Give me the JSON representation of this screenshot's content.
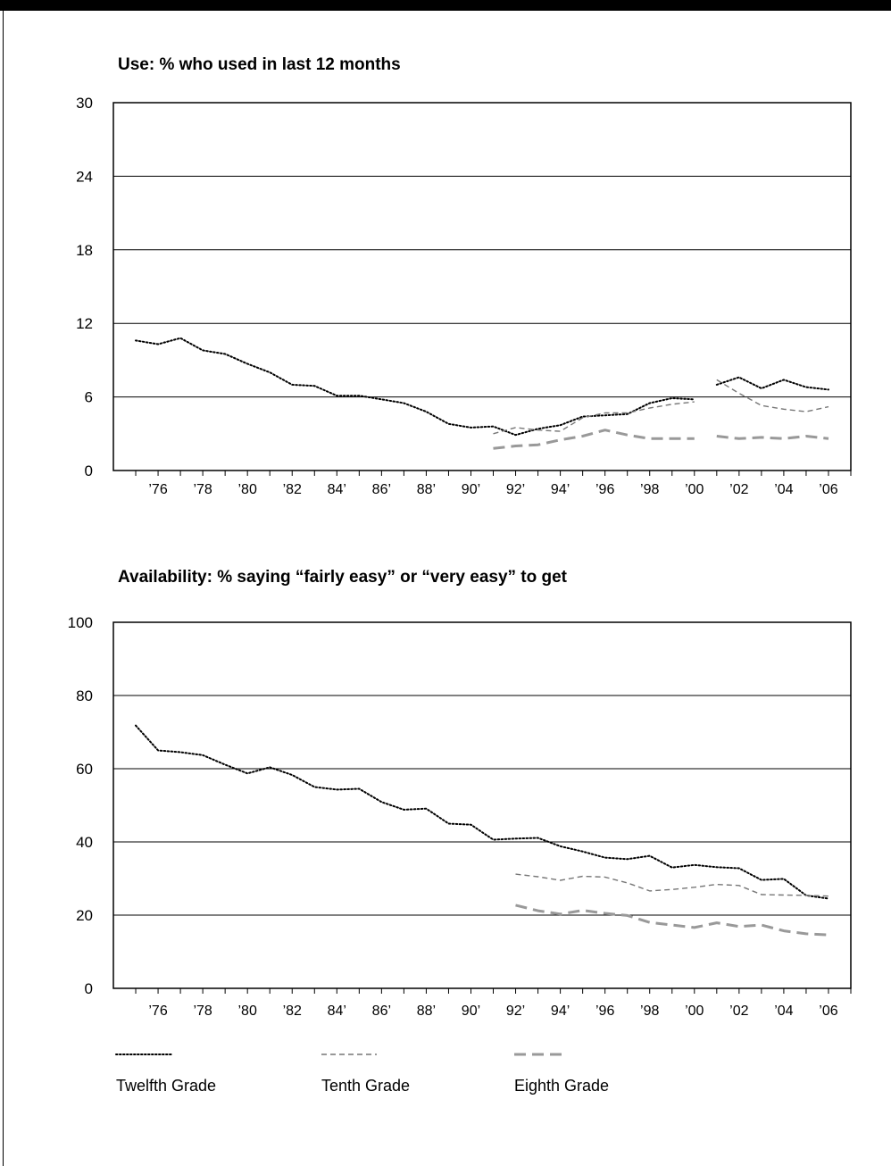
{
  "legend": [
    {
      "label": "Twelfth Grade",
      "color": "#000000",
      "style": "dotted"
    },
    {
      "label": "Tenth Grade",
      "color": "#777777",
      "style": "short-dash"
    },
    {
      "label": "Eighth Grade",
      "color": "#999999",
      "style": "long-dash"
    }
  ],
  "x_tick_labels": [
    "’76",
    "’78",
    "’80",
    "’82",
    "84’",
    "86’",
    "88’",
    "90’",
    "92’",
    "94’",
    "’96",
    "’98",
    "’00",
    "’02",
    "’04",
    "’06"
  ],
  "x_tick_years": [
    1976,
    1978,
    1980,
    1982,
    1984,
    1986,
    1988,
    1990,
    1992,
    1994,
    1996,
    1998,
    2000,
    2002,
    2004,
    2006
  ],
  "chart_data": [
    {
      "type": "line",
      "title": "Use: % who used in last 12 months",
      "xlabel": "",
      "ylabel": "",
      "xlim": [
        1974,
        2007
      ],
      "ylim": [
        0,
        30
      ],
      "yticks": [
        0,
        6,
        12,
        18,
        24,
        30
      ],
      "grid": true,
      "series": [
        {
          "name": "Twelfth Grade",
          "x": [
            1975,
            1976,
            1977,
            1978,
            1979,
            1980,
            1981,
            1982,
            1983,
            1984,
            1985,
            1986,
            1987,
            1988,
            1989,
            1990,
            1991,
            1992,
            1993,
            1994,
            1995,
            1996,
            1997,
            1998,
            1999,
            2000
          ],
          "y": [
            10.6,
            10.3,
            10.8,
            9.8,
            9.5,
            8.7,
            8.0,
            7.0,
            6.9,
            6.1,
            6.1,
            5.8,
            5.5,
            4.8,
            3.8,
            3.5,
            3.6,
            2.9,
            3.4,
            3.7,
            4.4,
            4.5,
            4.6,
            5.5,
            5.9,
            5.8
          ]
        },
        {
          "name": "Twelfth Grade",
          "x": [
            2001,
            2002,
            2003,
            2004,
            2005,
            2006
          ],
          "y": [
            7.0,
            7.6,
            6.7,
            7.4,
            6.8,
            6.6
          ]
        },
        {
          "name": "Tenth Grade",
          "x": [
            1991,
            1992,
            1993,
            1994,
            1995,
            1996,
            1997,
            1998,
            1999,
            2000
          ],
          "y": [
            3.0,
            3.5,
            3.3,
            3.2,
            4.3,
            4.7,
            4.7,
            5.1,
            5.4,
            5.6
          ]
        },
        {
          "name": "Tenth Grade",
          "x": [
            2001,
            2002,
            2003,
            2004,
            2005,
            2006
          ],
          "y": [
            7.4,
            6.3,
            5.3,
            5.0,
            4.8,
            5.2
          ]
        },
        {
          "name": "Eighth Grade",
          "x": [
            1991,
            1992,
            1993,
            1994,
            1995,
            1996,
            1997,
            1998,
            1999,
            2000
          ],
          "y": [
            1.8,
            2.0,
            2.1,
            2.5,
            2.8,
            3.3,
            2.9,
            2.6,
            2.6,
            2.6
          ]
        },
        {
          "name": "Eighth Grade",
          "x": [
            2001,
            2002,
            2003,
            2004,
            2005,
            2006
          ],
          "y": [
            2.8,
            2.6,
            2.7,
            2.6,
            2.8,
            2.6
          ]
        }
      ]
    },
    {
      "type": "line",
      "title": "Availability: % saying “fairly easy” or “very easy” to get",
      "xlabel": "",
      "ylabel": "",
      "xlim": [
        1974,
        2007
      ],
      "ylim": [
        0,
        100
      ],
      "yticks": [
        0,
        20,
        40,
        60,
        80,
        100
      ],
      "grid": true,
      "series": [
        {
          "name": "Twelfth Grade",
          "x": [
            1975,
            1976,
            1977,
            1978,
            1979,
            1980,
            1981,
            1982,
            1983,
            1984,
            1985,
            1986,
            1987,
            1988,
            1989,
            1990,
            1991,
            1992,
            1993,
            1994,
            1995,
            1996,
            1997,
            1998,
            1999,
            2000,
            2001,
            2002,
            2003,
            2004,
            2005,
            2006
          ],
          "y": [
            71.8,
            65.0,
            64.5,
            63.7,
            61.1,
            58.7,
            60.4,
            58.3,
            55.0,
            54.3,
            54.5,
            50.9,
            48.8,
            49.1,
            45.0,
            44.7,
            40.6,
            40.9,
            41.1,
            38.8,
            37.4,
            35.7,
            35.3,
            36.2,
            33.0,
            33.7,
            33.1,
            32.8,
            29.6,
            29.9,
            25.4,
            24.5
          ]
        },
        {
          "name": "Tenth Grade",
          "x": [
            1992,
            1993,
            1994,
            1995,
            1996,
            1997,
            1998,
            1999,
            2000,
            2001,
            2002,
            2003,
            2004,
            2005,
            2006
          ],
          "y": [
            31.2,
            30.5,
            29.5,
            30.6,
            30.4,
            28.8,
            26.6,
            27.0,
            27.6,
            28.4,
            28.1,
            25.6,
            25.5,
            25.4,
            25.2
          ]
        },
        {
          "name": "Eighth Grade",
          "x": [
            1992,
            1993,
            1994,
            1995,
            1996,
            1997,
            1998,
            1999,
            2000,
            2001,
            2002,
            2003,
            2004,
            2005,
            2006
          ],
          "y": [
            22.7,
            21.2,
            20.3,
            21.3,
            20.5,
            19.9,
            18.0,
            17.3,
            16.6,
            17.9,
            16.9,
            17.3,
            15.7,
            14.9,
            14.6
          ]
        }
      ]
    }
  ]
}
